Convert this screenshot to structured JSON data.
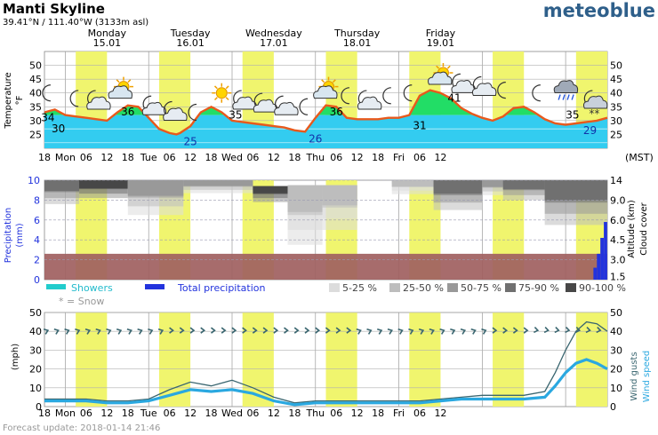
{
  "header": {
    "title": "Manti Skyline",
    "location": "39.41°N / 111.40°W (3133m asl)",
    "brand": "meteoblue",
    "footer": "Forecast update: 2018-01-14 21:46",
    "timezone": "(MST)"
  },
  "colors": {
    "daylight": "#f0f56e",
    "temp_line": "#e8591c",
    "temp_warm": "#22dd66",
    "temp_cool": "#33ccf0",
    "temp_cold": "#19b8e8",
    "ground": "#a06060",
    "precip": "#2233dd",
    "showers": "#22cccc",
    "wind_speed": "#2aa8e0",
    "wind_gust": "#3a6670",
    "arrow": "#3a6670",
    "brand": "#2e5f8a"
  },
  "days": [
    {
      "name": "Monday",
      "date": "15.01"
    },
    {
      "name": "Tuesday",
      "date": "16.01"
    },
    {
      "name": "Wednesday",
      "date": "17.01"
    },
    {
      "name": "Thursday",
      "date": "18.01"
    },
    {
      "name": "Friday",
      "date": "19.01"
    }
  ],
  "x_ticks": [
    "18",
    "Mon",
    "06",
    "12",
    "18",
    "Tue",
    "06",
    "12",
    "18",
    "Wed",
    "06",
    "12",
    "18",
    "Thu",
    "06",
    "12",
    "18",
    "Fri",
    "06",
    "12"
  ],
  "chart_data": [
    {
      "type": "area",
      "name": "temperature",
      "ylabel": "Temperature °F",
      "ylim": [
        20,
        55
      ],
      "yticks": [
        25,
        30,
        35,
        40,
        45,
        50
      ],
      "x_hours": [
        0,
        3,
        6,
        9,
        12,
        15,
        18,
        21,
        24,
        27,
        30,
        33,
        36,
        38,
        39,
        42,
        45,
        48,
        51,
        54,
        57,
        60,
        63,
        66,
        69,
        72,
        75,
        78,
        81,
        84,
        87,
        90,
        93,
        96,
        99,
        102,
        105,
        108,
        111,
        114,
        117,
        120,
        123,
        126,
        129,
        132,
        135,
        138,
        141,
        144,
        147,
        150,
        153,
        156,
        159,
        162
      ],
      "temperature": [
        33,
        34,
        32,
        31.5,
        31,
        30.5,
        30,
        33,
        35.5,
        35,
        31,
        27,
        25.5,
        25,
        25.5,
        28,
        33,
        35,
        33,
        30,
        29.5,
        29,
        28.5,
        28,
        27.5,
        26.5,
        26,
        31,
        35.5,
        35,
        31,
        30.5,
        30.5,
        30.5,
        31,
        31,
        32,
        39,
        41,
        40,
        38,
        34.5,
        32.5,
        31,
        30,
        31.5,
        34.5,
        35,
        33,
        30.5,
        29,
        28.5,
        29,
        29.5,
        30,
        31
      ],
      "labels": [
        {
          "hour": 1,
          "value": "34"
        },
        {
          "hour": 4,
          "value": "30"
        },
        {
          "hour": 24,
          "value": "36"
        },
        {
          "hour": 42,
          "value": "25"
        },
        {
          "hour": 55,
          "value": "35"
        },
        {
          "hour": 78,
          "value": "26"
        },
        {
          "hour": 84,
          "value": "36"
        },
        {
          "hour": 108,
          "value": "31"
        },
        {
          "hour": 118,
          "value": "41"
        },
        {
          "hour": 152,
          "value": "35"
        },
        {
          "hour": 157,
          "value": "29"
        }
      ],
      "icons": [
        {
          "hour": 1,
          "kind": "moon",
          "y": 40
        },
        {
          "hour": 9,
          "kind": "moon",
          "y": 38
        },
        {
          "hour": 15,
          "kind": "moon-cloud",
          "y": 37
        },
        {
          "hour": 22,
          "kind": "sun-cloud",
          "y": 41
        },
        {
          "hour": 31,
          "kind": "moon-cloud",
          "y": 35
        },
        {
          "hour": 37,
          "kind": "moon-cloud",
          "y": 33
        },
        {
          "hour": 43,
          "kind": "moon",
          "y": 33
        },
        {
          "hour": 51,
          "kind": "sun",
          "y": 40
        },
        {
          "hour": 57,
          "kind": "moon-cloud",
          "y": 37
        },
        {
          "hour": 63,
          "kind": "moon-cloud",
          "y": 36
        },
        {
          "hour": 69,
          "kind": "moon-cloud",
          "y": 35
        },
        {
          "hour": 75,
          "kind": "moon",
          "y": 35
        },
        {
          "hour": 81,
          "kind": "sun-cloud",
          "y": 41
        },
        {
          "hour": 87,
          "kind": "moon",
          "y": 39
        },
        {
          "hour": 93,
          "kind": "moon-cloud",
          "y": 37
        },
        {
          "hour": 99,
          "kind": "moon",
          "y": 39
        },
        {
          "hour": 105,
          "kind": "moon",
          "y": 40
        },
        {
          "hour": 114,
          "kind": "sun-cloud",
          "y": 46
        },
        {
          "hour": 120,
          "kind": "moon-cloud",
          "y": 43
        },
        {
          "hour": 126,
          "kind": "moon-cloud",
          "y": 42
        },
        {
          "hour": 132,
          "kind": "moon",
          "y": 41
        },
        {
          "hour": 142,
          "kind": "moon",
          "y": 40
        },
        {
          "hour": 150,
          "kind": "rain-cloud",
          "y": 42
        },
        {
          "hour": 158,
          "kind": "snow-cloud",
          "y": 37
        }
      ]
    },
    {
      "type": "heatmap",
      "name": "precipitation-cloud-cover",
      "ylabel_left": "Precipitation (mm)",
      "ylabel_right_1": "Altitude (km)",
      "ylabel_right_2": "Cloud cover",
      "y_left_ticks": [
        0,
        2,
        4,
        6,
        8,
        10
      ],
      "y_right_ticks": [
        "1.5",
        "3.0",
        "4.5",
        "6.0",
        "9.0",
        "14"
      ],
      "ground_level_mm": 2.6,
      "cloud_bands": [
        {
          "from": 0,
          "to": 10,
          "top": 10,
          "bottom": 7.6,
          "shade": 3
        },
        {
          "from": 10,
          "to": 24,
          "top": 10,
          "bottom": 8.2,
          "shade": 4
        },
        {
          "from": 24,
          "to": 40,
          "top": 10,
          "bottom": 6.5,
          "shade": 2
        },
        {
          "from": 40,
          "to": 60,
          "top": 10,
          "bottom": 8.7,
          "shade": 2
        },
        {
          "from": 60,
          "to": 70,
          "top": 9.4,
          "bottom": 7.8,
          "shade": 4
        },
        {
          "from": 70,
          "to": 80,
          "top": 9.5,
          "bottom": 3.5,
          "shade": 1
        },
        {
          "from": 80,
          "to": 90,
          "top": 9.5,
          "bottom": 5.0,
          "shade": 1
        },
        {
          "from": 100,
          "to": 112,
          "top": 10,
          "bottom": 8.6,
          "shade": 1
        },
        {
          "from": 112,
          "to": 126,
          "top": 10,
          "bottom": 7.0,
          "shade": 3
        },
        {
          "from": 126,
          "to": 132,
          "top": 10,
          "bottom": 8.5,
          "shade": 2
        },
        {
          "from": 132,
          "to": 144,
          "top": 10,
          "bottom": 8.0,
          "shade": 3
        },
        {
          "from": 144,
          "to": 162,
          "top": 10,
          "bottom": 5.5,
          "shade": 3
        }
      ],
      "precip_bars": [
        {
          "hour": 158,
          "value": 1.2
        },
        {
          "hour": 159,
          "value": 2.6
        },
        {
          "hour": 160,
          "value": 4.2
        },
        {
          "hour": 161,
          "value": 5.8
        }
      ],
      "legend": {
        "showers": "Showers",
        "total": "Total precipitation",
        "snow": "* = Snow",
        "cover": [
          "5-25 %",
          "25-50 %",
          "50-75 %",
          "75-90 %",
          "90-100 %"
        ],
        "cover_colors": [
          "#dcdcdc",
          "#bdbdbd",
          "#999999",
          "#707070",
          "#474747"
        ]
      }
    },
    {
      "type": "line",
      "name": "wind",
      "ylabel_left": "(mph)",
      "ylabel_right_1": "Wind gusts",
      "ylabel_right_2": "Wind speed",
      "ylim": [
        0,
        50
      ],
      "yticks": [
        0,
        10,
        20,
        30,
        40,
        50
      ],
      "x_hours": [
        0,
        6,
        12,
        18,
        24,
        30,
        36,
        42,
        48,
        54,
        60,
        66,
        72,
        78,
        84,
        90,
        96,
        102,
        108,
        114,
        120,
        126,
        132,
        138,
        144,
        147,
        150,
        153,
        156,
        159,
        162
      ],
      "series": [
        {
          "key": "gust",
          "values": [
            4,
            4,
            4,
            3,
            3,
            4,
            9,
            13,
            11,
            14,
            10,
            5,
            2,
            3,
            3,
            3,
            3,
            3,
            3,
            4,
            5,
            6,
            6,
            6,
            8,
            18,
            30,
            40,
            45,
            44,
            40
          ]
        },
        {
          "key": "speed",
          "values": [
            3,
            3,
            3,
            2,
            2,
            3,
            6,
            9,
            8,
            9,
            7,
            3,
            1,
            2,
            2,
            2,
            2,
            2,
            2,
            3,
            4,
            4,
            4,
            4,
            5,
            11,
            18,
            23,
            25,
            23,
            20
          ]
        }
      ],
      "arrow_row_value": 40
    }
  ]
}
